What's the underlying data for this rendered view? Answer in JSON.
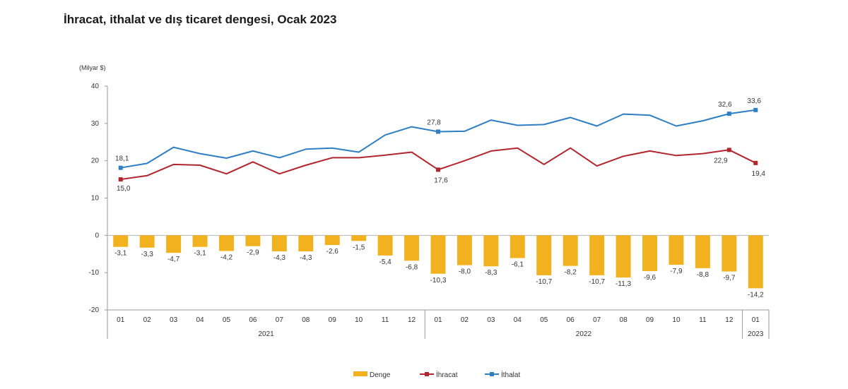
{
  "title": "İhracat, ithalat ve dış ticaret dengesi, Ocak 2023",
  "chart_data": {
    "type": "bar+line",
    "unit_label": "(Milyar $)",
    "ylim": [
      -20,
      40
    ],
    "yticks": [
      40,
      30,
      20,
      10,
      0,
      -10,
      -20
    ],
    "months": [
      "01",
      "02",
      "03",
      "04",
      "05",
      "06",
      "07",
      "08",
      "09",
      "10",
      "11",
      "12",
      "01",
      "02",
      "03",
      "04",
      "05",
      "06",
      "07",
      "08",
      "09",
      "10",
      "11",
      "12",
      "01"
    ],
    "years": [
      {
        "label": "2021",
        "start": 0,
        "end": 11
      },
      {
        "label": "2022",
        "start": 12,
        "end": 23
      },
      {
        "label": "2023",
        "start": 24,
        "end": 24
      }
    ],
    "series": [
      {
        "name": "Denge",
        "type": "bar",
        "color": "#F2B21F",
        "values": [
          -3.1,
          -3.3,
          -4.7,
          -3.1,
          -4.2,
          -2.9,
          -4.3,
          -4.3,
          -2.6,
          -1.5,
          -5.4,
          -6.8,
          -10.3,
          -8.0,
          -8.3,
          -6.1,
          -10.7,
          -8.2,
          -10.7,
          -11.3,
          -9.6,
          -7.9,
          -8.8,
          -9.7,
          -14.2
        ],
        "labels": [
          "-3,1",
          "-3,3",
          "-4,7",
          "-3,1",
          "-4,2",
          "-2,9",
          "-4,3",
          "-4,3",
          "-2,6",
          "-1,5",
          "-5,4",
          "-6,8",
          "-10,3",
          "-8,0",
          "-8,3",
          "-6,1",
          "-10,7",
          "-8,2",
          "-10,7",
          "-11,3",
          "-9,6",
          "-7,9",
          "-8,8",
          "-9,7",
          "-14,2"
        ]
      },
      {
        "name": "İhracat",
        "type": "line",
        "color": "#B0262E",
        "values": [
          15.0,
          16.0,
          19.0,
          18.8,
          16.5,
          19.7,
          16.5,
          18.8,
          20.8,
          20.8,
          21.5,
          22.3,
          17.6,
          20.0,
          22.6,
          23.4,
          19.0,
          23.4,
          18.6,
          21.2,
          22.6,
          21.4,
          21.9,
          22.9,
          19.4
        ],
        "point_labels": {
          "0": "15,0",
          "12": "17,6",
          "23": "22,9",
          "24": "19,4"
        },
        "marked_points": [
          0,
          12,
          23,
          24
        ]
      },
      {
        "name": "İthalat",
        "type": "line",
        "color": "#2E7EC2",
        "values": [
          18.1,
          19.3,
          23.6,
          21.9,
          20.7,
          22.6,
          20.8,
          23.1,
          23.4,
          22.3,
          26.9,
          29.1,
          27.8,
          27.9,
          30.9,
          29.5,
          29.7,
          31.6,
          29.3,
          32.5,
          32.2,
          29.3,
          30.7,
          32.6,
          33.6
        ],
        "point_labels": {
          "0": "18,1",
          "12": "27,8",
          "23": "32,6",
          "24": "33,6"
        },
        "marked_points": [
          0,
          12,
          23,
          24
        ]
      }
    ],
    "legend": [
      "Denge",
      "İhracat",
      "İthalat"
    ],
    "legend_position": "bottom"
  }
}
